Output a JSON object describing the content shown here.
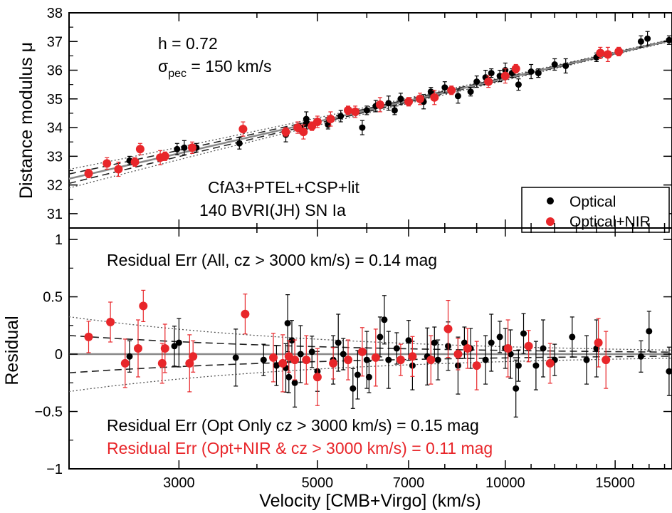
{
  "chart_data": [
    {
      "panel": "hubble",
      "type": "scatter",
      "ylabel": "Distance modulus μ",
      "ylim": [
        30.5,
        38
      ],
      "yticks": [
        31,
        32,
        33,
        34,
        35,
        36,
        37,
        38
      ],
      "xscale": "log",
      "xlim": [
        2000,
        18500
      ],
      "annotations": {
        "h_text": "h = 0.72",
        "sigma_prefix": "σ",
        "sigma_sub": "pec",
        "sigma_suffix": " = 150 km/s",
        "sample_line1": "CfA3+PTEL+CSP+lit",
        "sample_line2": "140 BVRI(JH) SN Ia"
      },
      "legend": {
        "placement": "bottom-right",
        "entries": [
          {
            "label": "Optical",
            "color": "#000000"
          },
          {
            "label": "Optical+NIR",
            "color": "#e8262a"
          }
        ]
      },
      "model": {
        "h": 0.72,
        "sigma_pec_kms": 150
      },
      "series": [
        {
          "name": "Optical",
          "color": "#000000",
          "points": [
            [
              2500,
              32.85
            ],
            [
              2980,
              33.25
            ],
            [
              3060,
              33.3
            ],
            [
              3200,
              33.3
            ],
            [
              3750,
              33.45
            ],
            [
              4450,
              33.75
            ],
            [
              4700,
              34.0
            ],
            [
              4800,
              34.15
            ],
            [
              4800,
              34.3
            ],
            [
              5200,
              34.1
            ],
            [
              5450,
              34.4
            ],
            [
              5900,
              34.0
            ],
            [
              6000,
              34.6
            ],
            [
              6200,
              34.75
            ],
            [
              6500,
              34.85
            ],
            [
              6650,
              34.6
            ],
            [
              6800,
              35.0
            ],
            [
              7400,
              34.9
            ],
            [
              7600,
              35.25
            ],
            [
              8000,
              35.4
            ],
            [
              8400,
              35.1
            ],
            [
              8800,
              35.25
            ],
            [
              9000,
              35.6
            ],
            [
              9300,
              35.75
            ],
            [
              9500,
              35.9
            ],
            [
              9800,
              35.8
            ],
            [
              10000,
              36.0
            ],
            [
              10250,
              35.9
            ],
            [
              10500,
              35.5
            ],
            [
              11000,
              35.95
            ],
            [
              11300,
              35.9
            ],
            [
              12000,
              36.2
            ],
            [
              12500,
              36.15
            ],
            [
              14000,
              36.45
            ],
            [
              16500,
              37.0
            ],
            [
              16900,
              37.1
            ],
            [
              18300,
              37.05
            ]
          ]
        },
        {
          "name": "Optical+NIR",
          "color": "#e8262a",
          "points": [
            [
              2150,
              32.4
            ],
            [
              2300,
              32.75
            ],
            [
              2400,
              32.55
            ],
            [
              2550,
              32.8
            ],
            [
              2600,
              33.25
            ],
            [
              2800,
              32.95
            ],
            [
              2850,
              33.0
            ],
            [
              3150,
              33.3
            ],
            [
              3800,
              33.95
            ],
            [
              4450,
              33.85
            ],
            [
              4650,
              34.0
            ],
            [
              4750,
              33.85
            ],
            [
              4900,
              34.05
            ],
            [
              5000,
              34.2
            ],
            [
              5250,
              34.3
            ],
            [
              5600,
              34.6
            ],
            [
              5750,
              34.55
            ],
            [
              6300,
              34.8
            ],
            [
              7000,
              34.9
            ],
            [
              7300,
              35.0
            ],
            [
              7700,
              35.05
            ],
            [
              8200,
              35.3
            ],
            [
              9400,
              35.6
            ],
            [
              10000,
              35.8
            ],
            [
              10400,
              36.05
            ],
            [
              14200,
              36.6
            ],
            [
              14600,
              36.55
            ],
            [
              15200,
              36.65
            ]
          ]
        }
      ]
    },
    {
      "panel": "residual",
      "type": "scatter",
      "xlabel": "Velocity [CMB+Virgo] (km/s)",
      "ylabel": "Residual",
      "ylim": [
        -1,
        1.1
      ],
      "yticks": [
        -1,
        -0.5,
        0,
        0.5,
        1
      ],
      "ytick_labels": [
        "−1",
        "−0.5",
        "0",
        "0.5",
        "1"
      ],
      "xscale": "log",
      "xlim": [
        2000,
        18500
      ],
      "xticks": [
        3000,
        5000,
        7000,
        10000,
        15000
      ],
      "xtick_labels": [
        "3000",
        "5000",
        "7000",
        "10000",
        "15000"
      ],
      "annotations": {
        "all_text": "Residual Err (All, cz > 3000 km/s) = 0.14 mag",
        "opt_text": "Residual Err (Opt Only cz > 3000 km/s) = 0.15 mag",
        "nir_text": "Residual Err (Opt+NIR & cz > 3000 km/s) = 0.11 mag"
      },
      "series": [
        {
          "name": "Optical",
          "color": "#000000",
          "points": [
            [
              2500,
              -0.02
            ],
            [
              2950,
              0.07
            ],
            [
              3000,
              0.1
            ],
            [
              3700,
              -0.03
            ],
            [
              4100,
              -0.05
            ],
            [
              4300,
              -0.1
            ],
            [
              4450,
              -0.12
            ],
            [
              4480,
              0.27
            ],
            [
              4500,
              -0.2
            ],
            [
              4550,
              0.12
            ],
            [
              4600,
              -0.25
            ],
            [
              4700,
              0.0
            ],
            [
              4900,
              0.02
            ],
            [
              5000,
              -0.15
            ],
            [
              5300,
              -0.05
            ],
            [
              5400,
              0.1
            ],
            [
              5500,
              0.0
            ],
            [
              5700,
              -0.3
            ],
            [
              5800,
              -0.18
            ],
            [
              6000,
              -0.05
            ],
            [
              6050,
              -0.2
            ],
            [
              6300,
              0.15
            ],
            [
              6400,
              0.3
            ],
            [
              6500,
              -0.05
            ],
            [
              6700,
              0.05
            ],
            [
              7000,
              0.12
            ],
            [
              7100,
              -0.1
            ],
            [
              7500,
              -0.02
            ],
            [
              7700,
              0.1
            ],
            [
              7800,
              -0.05
            ],
            [
              8100,
              0.07
            ],
            [
              8400,
              -0.1
            ],
            [
              8600,
              0.1
            ],
            [
              8800,
              0.05
            ],
            [
              9300,
              -0.05
            ],
            [
              9500,
              0.1
            ],
            [
              9800,
              0.15
            ],
            [
              10000,
              0.05
            ],
            [
              10200,
              0.0
            ],
            [
              10400,
              -0.3
            ],
            [
              10500,
              -0.1
            ],
            [
              10700,
              0.18
            ],
            [
              11200,
              -0.1
            ],
            [
              11500,
              0.05
            ],
            [
              12000,
              -0.05
            ],
            [
              12800,
              0.15
            ],
            [
              13500,
              -0.05
            ],
            [
              14000,
              0.05
            ],
            [
              16500,
              -0.02
            ],
            [
              17000,
              0.2
            ],
            [
              18300,
              -0.15
            ]
          ]
        },
        {
          "name": "Optical+NIR",
          "color": "#e8262a",
          "points": [
            [
              2150,
              0.15
            ],
            [
              2330,
              0.28
            ],
            [
              2460,
              -0.08
            ],
            [
              2580,
              0.05
            ],
            [
              2630,
              0.42
            ],
            [
              2820,
              -0.08
            ],
            [
              2850,
              0.05
            ],
            [
              3120,
              -0.08
            ],
            [
              3160,
              -0.02
            ],
            [
              3830,
              0.35
            ],
            [
              4250,
              -0.03
            ],
            [
              4400,
              -0.08
            ],
            [
              4500,
              -0.02
            ],
            [
              4600,
              -0.05
            ],
            [
              4800,
              -0.05
            ],
            [
              5000,
              -0.2
            ],
            [
              5300,
              -0.08
            ],
            [
              5600,
              -0.05
            ],
            [
              5900,
              0.02
            ],
            [
              6200,
              -0.03
            ],
            [
              6800,
              -0.05
            ],
            [
              7100,
              -0.02
            ],
            [
              7600,
              -0.05
            ],
            [
              8100,
              0.22
            ],
            [
              8400,
              0.0
            ],
            [
              8700,
              0.05
            ],
            [
              9000,
              -0.1
            ],
            [
              10100,
              0.05
            ],
            [
              10900,
              0.07
            ],
            [
              11800,
              -0.08
            ],
            [
              14100,
              0.1
            ],
            [
              14500,
              -0.05
            ]
          ]
        }
      ]
    }
  ]
}
